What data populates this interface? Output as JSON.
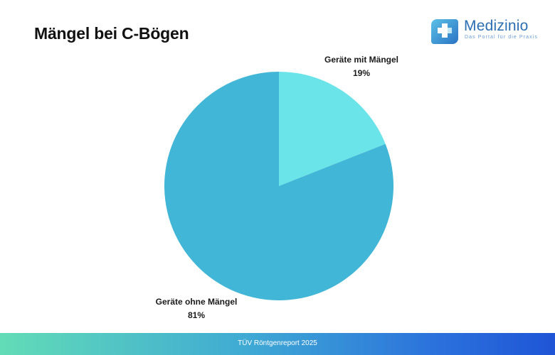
{
  "title": "Mängel bei C-Bögen",
  "logo": {
    "name": "Medizinio",
    "tagline": "Das Portal für die Praxis",
    "icon": "medical-cross-icon"
  },
  "footer": {
    "source": "TÜV Röntgenreport 2025"
  },
  "colors": {
    "slice_with_defects": "#6ae4e9",
    "slice_without_defects": "#42b6d6"
  },
  "chart_data": {
    "type": "pie",
    "title": "Mängel bei C-Bögen",
    "start": "12 o'clock, clockwise",
    "slices": [
      {
        "label": "Geräte mit Mängel",
        "value": 19,
        "display": "19%",
        "color": "#6ae4e9"
      },
      {
        "label": "Geräte ohne Mängel",
        "value": 81,
        "display": "81%",
        "color": "#42b6d6"
      }
    ]
  }
}
